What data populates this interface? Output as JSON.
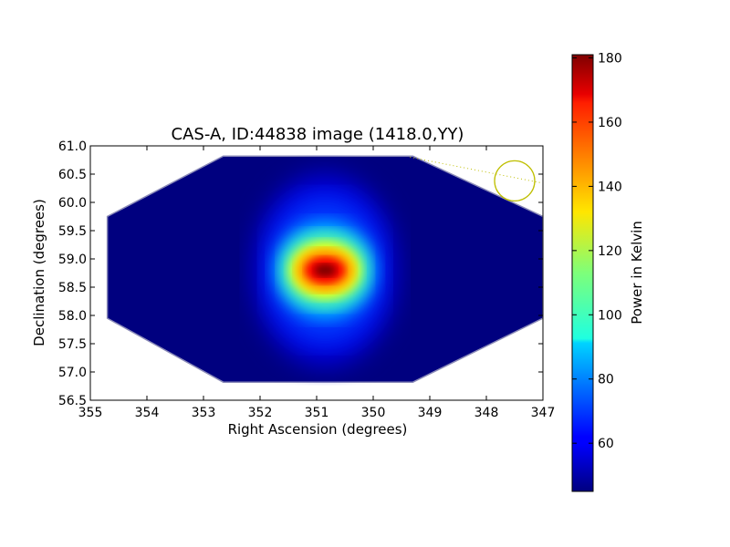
{
  "chart_data": {
    "type": "heatmap",
    "title": "CAS-A, ID:44838 image (1418.0,YY)",
    "xlabel": "Right Ascension (degrees)",
    "ylabel": "Declination (degrees)",
    "xlim": [
      355,
      347
    ],
    "ylim": [
      56.5,
      61.0
    ],
    "x_ticks": [
      "355",
      "354",
      "353",
      "352",
      "351",
      "350",
      "349",
      "348",
      "347"
    ],
    "y_ticks": [
      "56.5",
      "57.0",
      "57.5",
      "58.0",
      "58.5",
      "59.0",
      "59.5",
      "60.0",
      "60.5",
      "61.0"
    ],
    "grid": false,
    "colormap": "jet",
    "colorbar": {
      "label": "Power in Kelvin",
      "min": 45,
      "max": 181,
      "ticks": [
        "60",
        "80",
        "100",
        "120",
        "140",
        "160",
        "180"
      ]
    },
    "peak": {
      "ra": 350.85,
      "dec": 58.8,
      "value": 181
    },
    "background_value": 46,
    "footprint_polygon": [
      [
        352.65,
        60.82
      ],
      [
        349.3,
        60.82
      ],
      [
        347.0,
        59.75
      ],
      [
        347.0,
        57.95
      ],
      [
        349.3,
        56.82
      ],
      [
        352.65,
        56.82
      ],
      [
        354.7,
        57.95
      ],
      [
        354.7,
        59.75
      ]
    ],
    "beam_marker": {
      "ra": 347.5,
      "dec": 60.38,
      "color": "#bfbf00"
    },
    "beam_line": {
      "from": [
        349.35,
        60.8
      ],
      "to": [
        347.05,
        60.35
      ]
    }
  }
}
